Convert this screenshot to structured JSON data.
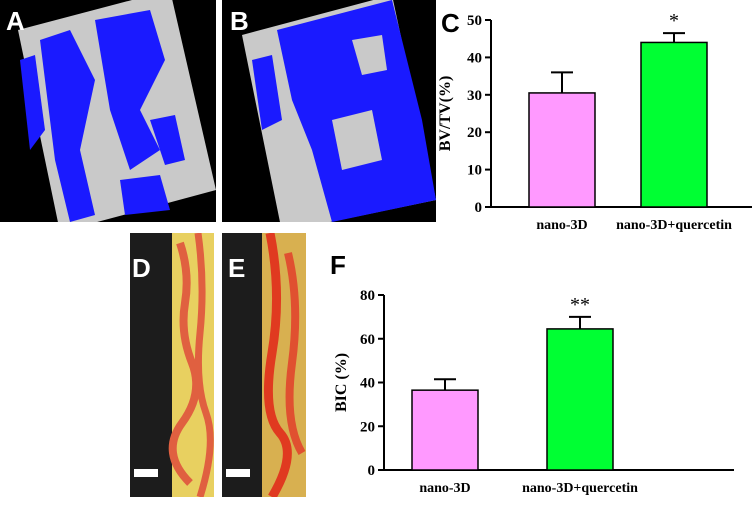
{
  "panels": {
    "a": {
      "letter": "A"
    },
    "b": {
      "letter": "B"
    },
    "c": {
      "letter": "C"
    },
    "d": {
      "letter": "D"
    },
    "e": {
      "letter": "E"
    },
    "f": {
      "letter": "F"
    }
  },
  "colors": {
    "nano3d": "#ff99ff",
    "quercetin": "#00ff33",
    "bone_blue": "#1a1aff",
    "implant_gray": "#c8c8c8",
    "histology_yellow": "#e8d060",
    "histology_red": "#e06040"
  },
  "chart_data": [
    {
      "type": "bar",
      "panel": "C",
      "categories": [
        "nano-3D",
        "nano-3D+quercetin"
      ],
      "values": [
        30.5,
        44.0
      ],
      "errors": [
        5.5,
        2.5
      ],
      "significance": [
        "",
        "*"
      ],
      "ylabel": "BV/TV(%)",
      "ylim": [
        0,
        50
      ],
      "yticks": [
        0,
        10,
        20,
        30,
        40,
        50
      ],
      "colors": [
        "#ff99ff",
        "#00ff33"
      ]
    },
    {
      "type": "bar",
      "panel": "F",
      "categories": [
        "nano-3D",
        "nano-3D+quercetin"
      ],
      "values": [
        36.5,
        64.5
      ],
      "errors": [
        5.0,
        5.5
      ],
      "significance": [
        "",
        "**"
      ],
      "ylabel": "BIC (%)",
      "ylim": [
        0,
        80
      ],
      "yticks": [
        0,
        20,
        40,
        60,
        80
      ],
      "colors": [
        "#ff99ff",
        "#00ff33"
      ]
    }
  ]
}
